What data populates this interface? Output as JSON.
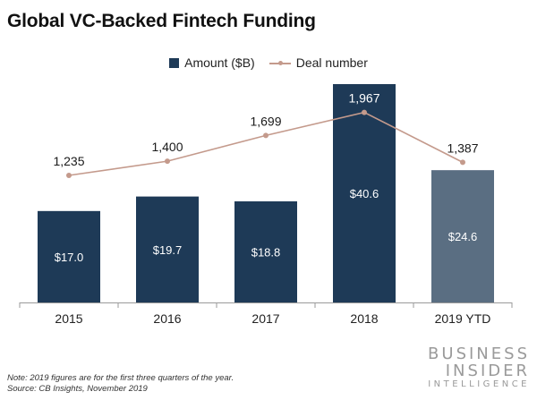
{
  "colors": {
    "bar": "#1e3a57",
    "bar_ytd": "#5a6e82",
    "line": "#c49a8c",
    "axis": "#9a9a9a"
  },
  "brand": {
    "line1": "BUSINESS",
    "line2": "INSIDER",
    "line3": "INTELLIGENCE"
  },
  "footer": {
    "note": "Note: 2019 figures are for the first three quarters of the year.",
    "source": "Source: CB Insights, November 2019"
  },
  "chart_data": {
    "type": "bar",
    "title": "Global VC-Backed Fintech Funding",
    "categories": [
      "2015",
      "2016",
      "2017",
      "2018",
      "2019 YTD"
    ],
    "legend": {
      "position": "top-center"
    },
    "grid": false,
    "series": [
      {
        "name": "Amount ($B)",
        "type": "bar",
        "values": [
          17.0,
          19.7,
          18.8,
          40.6,
          24.6
        ],
        "labels": [
          "$17.0",
          "$19.7",
          "$18.8",
          "$40.6",
          "$24.6"
        ]
      },
      {
        "name": "Deal number",
        "type": "line",
        "values": [
          1235,
          1400,
          1699,
          1967,
          1387
        ],
        "labels": [
          "1,235",
          "1,400",
          "1,699",
          "1,967",
          "1,387"
        ]
      }
    ]
  }
}
